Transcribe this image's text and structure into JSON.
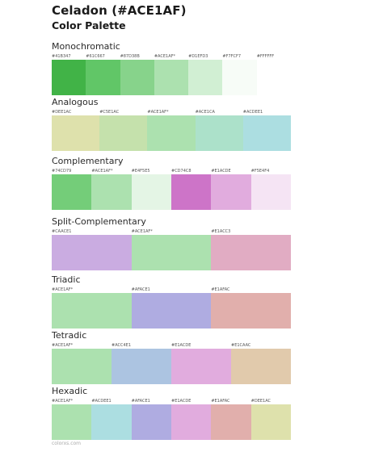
{
  "header": {
    "title": "Celadon (#ACE1AF)",
    "subtitle": "Color Palette"
  },
  "palettes": [
    {
      "title": "Monochromatic",
      "colors": [
        {
          "label": "#41B347",
          "hex": "#41B347"
        },
        {
          "label": "#61C667",
          "hex": "#61C667"
        },
        {
          "label": "#87D38B",
          "hex": "#87D38B"
        },
        {
          "label": "#ACE1AF*",
          "hex": "#ACE1AF"
        },
        {
          "label": "#D1EFD3",
          "hex": "#D1EFD3"
        },
        {
          "label": "#F7FCF7",
          "hex": "#F7FCF7"
        },
        {
          "label": "#FFFFFF",
          "hex": "#FFFFFF"
        }
      ]
    },
    {
      "title": "Analogous",
      "colors": [
        {
          "label": "#DEE1AC",
          "hex": "#DEE1AC"
        },
        {
          "label": "#C5E1AC",
          "hex": "#C5E1AC"
        },
        {
          "label": "#ACE1AF*",
          "hex": "#ACE1AF"
        },
        {
          "label": "#ACE1CA",
          "hex": "#ACE1CA"
        },
        {
          "label": "#ACDEE1",
          "hex": "#ACDEE1"
        }
      ]
    },
    {
      "title": "Complementary",
      "colors": [
        {
          "label": "#74CD79",
          "hex": "#74CD79"
        },
        {
          "label": "#ACE1AF*",
          "hex": "#ACE1AF"
        },
        {
          "label": "#E4F5E5",
          "hex": "#E4F5E5"
        },
        {
          "label": "#CD74C8",
          "hex": "#CD74C8"
        },
        {
          "label": "#E1ACDE",
          "hex": "#E1ACDE"
        },
        {
          "label": "#F5E4F4",
          "hex": "#F5E4F4"
        }
      ]
    },
    {
      "title": "Split-Complementary",
      "colors": [
        {
          "label": "#CAACE1",
          "hex": "#CAACE1"
        },
        {
          "label": "#ACE1AF*",
          "hex": "#ACE1AF"
        },
        {
          "label": "#E1ACC3",
          "hex": "#E1ACC3"
        }
      ]
    },
    {
      "title": "Triadic",
      "colors": [
        {
          "label": "#ACE1AF*",
          "hex": "#ACE1AF"
        },
        {
          "label": "#AFACE1",
          "hex": "#AFACE1"
        },
        {
          "label": "#E1AFAC",
          "hex": "#E1AFAC"
        }
      ]
    },
    {
      "title": "Tetradic",
      "colors": [
        {
          "label": "#ACE1AF*",
          "hex": "#ACE1AF"
        },
        {
          "label": "#ACC4E1",
          "hex": "#ACC4E1"
        },
        {
          "label": "#E1ACDE",
          "hex": "#E1ACDE"
        },
        {
          "label": "#E1CAAC",
          "hex": "#E1CAAC"
        }
      ]
    },
    {
      "title": "Hexadic",
      "colors": [
        {
          "label": "#ACE1AF*",
          "hex": "#ACE1AF"
        },
        {
          "label": "#ACDEE1",
          "hex": "#ACDEE1"
        },
        {
          "label": "#AFACE1",
          "hex": "#AFACE1"
        },
        {
          "label": "#E1ACDE",
          "hex": "#E1ACDE"
        },
        {
          "label": "#E1AFAC",
          "hex": "#E1AFAC"
        },
        {
          "label": "#DEE1AC",
          "hex": "#DEE1AC"
        }
      ]
    }
  ],
  "footer": {
    "text": "colorxs.com"
  }
}
